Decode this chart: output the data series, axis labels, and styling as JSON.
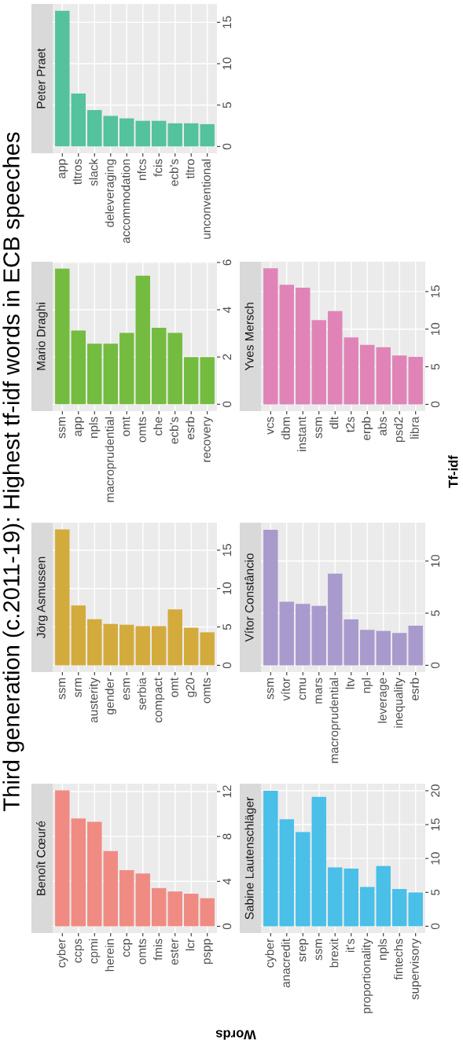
{
  "chart_data": [
    {
      "type": "bar",
      "title": "Benoît Cœuré",
      "annotations": [
        "Third generation (c.2011-19): Highest tf-idf words in ECB speeches"
      ],
      "categories": [
        "cyber",
        "ccps",
        "cpmi",
        "herein",
        "ccp",
        "omts",
        "fmis",
        "ester",
        "lcr",
        "pspp"
      ],
      "values": [
        12.1,
        9.6,
        9.3,
        6.7,
        5.0,
        4.7,
        3.4,
        3.1,
        2.9,
        2.5
      ],
      "color": "#f08b83",
      "ylim": [
        -0.6,
        12.7
      ],
      "yticks": [
        0,
        4,
        8,
        12
      ],
      "grid": true
    },
    {
      "type": "bar",
      "title": "Jörg Asmussen",
      "categories": [
        "ssm",
        "srm",
        "austerity",
        "gender",
        "esm",
        "serbia",
        "compact",
        "omt",
        "g20",
        "omts"
      ],
      "values": [
        17.7,
        7.8,
        6.0,
        5.4,
        5.3,
        5.1,
        5.1,
        7.3,
        4.9,
        4.3
      ],
      "color": "#d3ab3d",
      "ylim": [
        -0.88,
        18.58
      ],
      "yticks": [
        0,
        5,
        10,
        15
      ],
      "grid": true
    },
    {
      "type": "bar",
      "title": "Mario Draghi",
      "categories": [
        "ssm",
        "app",
        "npls",
        "macroprudential",
        "omt",
        "omts",
        "che",
        "ecb's",
        "esrb",
        "recovery"
      ],
      "values": [
        5.74,
        3.12,
        2.56,
        2.56,
        3.02,
        5.44,
        3.24,
        3.02,
        2.0,
        2.0
      ],
      "color": "#74bc40",
      "ylim": [
        -0.29,
        6.03
      ],
      "yticks": [
        0,
        2,
        4,
        6
      ],
      "grid": true
    },
    {
      "type": "bar",
      "title": "Peter Praet",
      "categories": [
        "app",
        "tltros",
        "slack",
        "deleveraging",
        "accommodation",
        "nfcs",
        "fcis",
        "ecb's",
        "tltro",
        "unconventional"
      ],
      "values": [
        16.4,
        6.4,
        4.4,
        3.7,
        3.4,
        3.1,
        3.1,
        2.8,
        2.8,
        2.7
      ],
      "color": "#54c29d",
      "ylim": [
        -0.82,
        17.22
      ],
      "yticks": [
        0,
        5,
        10,
        15
      ],
      "grid": true
    },
    {
      "type": "bar",
      "title": "Sabine Lautenschläger",
      "xlabel": "Words",
      "categories": [
        "cyber",
        "anacredit",
        "srep",
        "ssm",
        "brexit",
        "it's",
        "proportionality",
        "npls",
        "fintechs",
        "supervisory"
      ],
      "values": [
        20.0,
        15.8,
        13.9,
        19.1,
        8.7,
        8.5,
        5.8,
        8.9,
        5.5,
        5.0
      ],
      "color": "#4abfe8",
      "ylim": [
        -1.0,
        21.04
      ],
      "yticks": [
        0,
        5,
        10,
        15,
        20
      ],
      "grid": true
    },
    {
      "type": "bar",
      "title": "Vítor Constâncio",
      "categories": [
        "ssm",
        "vítor",
        "cmu",
        "mars",
        "macroprudential",
        "ltv",
        "npl",
        "leverage",
        "inequality",
        "esrb"
      ],
      "values": [
        13.0,
        6.1,
        5.9,
        5.7,
        8.8,
        4.4,
        3.4,
        3.3,
        3.1,
        3.8
      ],
      "color": "#a99acd",
      "ylim": [
        -0.65,
        13.68
      ],
      "yticks": [
        0,
        5,
        10
      ],
      "grid": true
    },
    {
      "type": "bar",
      "title": "Yves Mersch",
      "ylabel": "Tf-idf",
      "categories": [
        "vcs",
        "dbm",
        "instant",
        "ssm",
        "dlt",
        "t2s",
        "erpb",
        "abs",
        "psd2",
        "libra"
      ],
      "values": [
        18.1,
        15.9,
        15.5,
        11.2,
        12.4,
        8.9,
        7.9,
        7.6,
        6.5,
        6.3
      ],
      "color": "#e084b8",
      "ylim": [
        -0.9,
        18.96
      ],
      "yticks": [
        0,
        5,
        10,
        15
      ],
      "grid": true
    }
  ]
}
